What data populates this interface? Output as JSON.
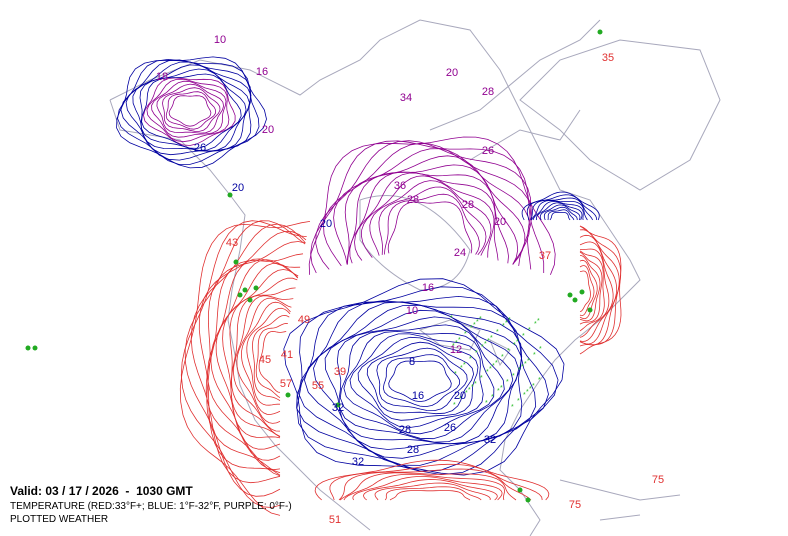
{
  "map": {
    "valid_time": "Valid: 03 / 17 / 2026  -  1030 GMT",
    "legend_text": "TEMPERATURE (RED:33°F+; BLUE: 1°F-32°F, PURPLE: 0°F-)",
    "layer_text": "PLOTTED WEATHER",
    "contour_labels": [
      {
        "value": 10,
        "color": "#900090"
      },
      {
        "value": 16,
        "color": "#900090"
      },
      {
        "value": 18,
        "color": "#900090"
      },
      {
        "value": 20,
        "color": "#900090"
      },
      {
        "value": 26,
        "color": "#0000a0"
      },
      {
        "value": 20,
        "color": "#0000a0"
      },
      {
        "value": 35,
        "color": "#e03030"
      },
      {
        "value": 75,
        "color": "#e03030"
      },
      {
        "value": 20,
        "color": "#900090"
      },
      {
        "value": 28,
        "color": "#900090"
      },
      {
        "value": 34,
        "color": "#900090"
      },
      {
        "value": 26,
        "color": "#900090"
      },
      {
        "value": 36,
        "color": "#900090"
      },
      {
        "value": 28,
        "color": "#900090"
      },
      {
        "value": 28,
        "color": "#900090"
      },
      {
        "value": 20,
        "color": "#900090"
      },
      {
        "value": 20,
        "color": "#0000a0"
      },
      {
        "value": 24,
        "color": "#900090"
      },
      {
        "value": 16,
        "color": "#900090"
      },
      {
        "value": 10,
        "color": "#900090"
      },
      {
        "value": 12,
        "color": "#900090"
      },
      {
        "value": 8,
        "color": "#0000a0"
      },
      {
        "value": 16,
        "color": "#0000a0"
      },
      {
        "value": 20,
        "color": "#0000a0"
      },
      {
        "value": 28,
        "color": "#0000a0"
      },
      {
        "value": 26,
        "color": "#0000a0"
      },
      {
        "value": 32,
        "color": "#0000a0"
      },
      {
        "value": 32,
        "color": "#0000a0"
      },
      {
        "value": 32,
        "color": "#0000a0"
      },
      {
        "value": 28,
        "color": "#0000a0"
      },
      {
        "value": 41,
        "color": "#e03030"
      },
      {
        "value": 49,
        "color": "#e03030"
      },
      {
        "value": 43,
        "color": "#e03030"
      },
      {
        "value": 45,
        "color": "#e03030"
      },
      {
        "value": 39,
        "color": "#e03030"
      },
      {
        "value": 57,
        "color": "#e03030"
      },
      {
        "value": 55,
        "color": "#e03030"
      },
      {
        "value": 37,
        "color": "#e03030"
      },
      {
        "value": 51,
        "color": "#e03030"
      },
      {
        "value": 75,
        "color": "#e03030"
      }
    ]
  }
}
